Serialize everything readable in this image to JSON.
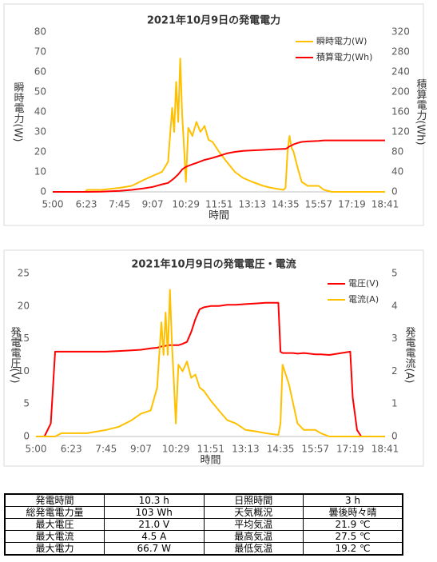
{
  "chart_data": [
    {
      "type": "line",
      "title": "2021年10月9日の発電電力",
      "x_label": "時間",
      "y_label": "瞬時電力(W)",
      "y2_label": "積算電力(Wh)",
      "x": [
        "5:00",
        "6:00",
        "6:20",
        "6:25",
        "7:00",
        "7:45",
        "8:15",
        "8:45",
        "9:07",
        "9:30",
        "9:45",
        "9:55",
        "10:00",
        "10:05",
        "10:10",
        "10:15",
        "10:20",
        "10:25",
        "10:29",
        "10:35",
        "10:45",
        "10:55",
        "11:05",
        "11:15",
        "11:25",
        "11:35",
        "11:51",
        "12:10",
        "12:30",
        "12:50",
        "13:13",
        "13:40",
        "14:00",
        "14:30",
        "14:35",
        "14:40",
        "14:45",
        "14:50",
        "14:55",
        "15:05",
        "15:15",
        "15:30",
        "15:57",
        "16:10",
        "16:30",
        "17:19",
        "18:41"
      ],
      "series": [
        {
          "name": "瞬時電力(W)",
          "color": "#ffc000",
          "values": [
            0,
            0,
            0,
            1,
            1,
            2,
            3,
            6,
            8,
            10,
            15,
            42,
            30,
            55,
            35,
            66.7,
            38,
            20,
            5,
            32,
            28,
            35,
            30,
            33,
            26,
            25,
            20,
            15,
            10,
            7,
            5,
            3,
            2,
            1,
            2,
            20,
            28,
            22,
            20,
            12,
            5,
            3,
            3,
            1,
            0,
            0,
            0
          ]
        },
        {
          "name": "積算電力(Wh)",
          "color": "#ff0000",
          "axis": "y2",
          "values": [
            0,
            0,
            0,
            0,
            0.5,
            2,
            4,
            7,
            10,
            15,
            18,
            24,
            27,
            31,
            35,
            40,
            45,
            48,
            50,
            52,
            55,
            58,
            61,
            64,
            66,
            68,
            72,
            77,
            80,
            82,
            83,
            84,
            85,
            86,
            86,
            88,
            91,
            93,
            95,
            98,
            100,
            101,
            102,
            103,
            103,
            103,
            103
          ]
        }
      ],
      "xlim": [
        "5:00",
        "18:41"
      ],
      "xticks": [
        "5:00",
        "6:23",
        "7:45",
        "9:07",
        "10:29",
        "11:51",
        "13:13",
        "14:35",
        "15:57",
        "17:19",
        "18:41"
      ],
      "ylim": [
        0,
        80
      ],
      "yticks": [
        0,
        10,
        20,
        30,
        40,
        50,
        60,
        70,
        80
      ],
      "y2lim": [
        0,
        320
      ],
      "y2ticks": [
        0,
        40,
        80,
        120,
        160,
        200,
        240,
        280,
        320
      ],
      "grid": false,
      "legend": "upper-right"
    },
    {
      "type": "line",
      "title": "2021年10月9日の発電電圧・電流",
      "x_label": "時間",
      "y_label": "発電電圧(V)",
      "y2_label": "発電電流(A)",
      "x": [
        "5:00",
        "5:20",
        "5:35",
        "5:45",
        "6:00",
        "7:00",
        "7:45",
        "8:15",
        "8:45",
        "9:07",
        "9:30",
        "9:45",
        "9:55",
        "10:00",
        "10:05",
        "10:10",
        "10:15",
        "10:20",
        "10:25",
        "10:29",
        "10:35",
        "10:45",
        "10:55",
        "11:05",
        "11:15",
        "11:25",
        "11:35",
        "11:51",
        "12:10",
        "12:30",
        "12:50",
        "13:13",
        "13:40",
        "14:00",
        "14:30",
        "14:35",
        "14:40",
        "14:45",
        "14:55",
        "15:05",
        "15:15",
        "15:30",
        "15:57",
        "16:10",
        "16:30",
        "17:19",
        "17:25",
        "17:35",
        "17:45",
        "18:41"
      ],
      "series": [
        {
          "name": "電圧(V)",
          "color": "#ff0000",
          "values": [
            0,
            0,
            2,
            13,
            13,
            13,
            13,
            13.1,
            13.2,
            13.3,
            13.5,
            13.6,
            13.8,
            13.8,
            13.9,
            14,
            14,
            14,
            14,
            14,
            14,
            14.2,
            14.5,
            16,
            18,
            19.5,
            19.8,
            20,
            20,
            20.2,
            20.2,
            20.3,
            20.4,
            20.5,
            20.5,
            13,
            12.8,
            12.8,
            12.8,
            12.8,
            12.7,
            12.8,
            12.6,
            12.6,
            12.5,
            13,
            6,
            1,
            0,
            0
          ]
        },
        {
          "name": "電流(A)",
          "color": "#ffc000",
          "axis": "y2",
          "values": [
            0,
            0,
            0,
            0,
            0.1,
            0.1,
            0.2,
            0.3,
            0.5,
            0.7,
            0.8,
            1.5,
            3.5,
            2.5,
            3.8,
            2.5,
            4.5,
            2.8,
            1.5,
            0.4,
            2.2,
            2,
            2.3,
            1.8,
            1.9,
            1.5,
            1.4,
            1.1,
            0.8,
            0.5,
            0.4,
            0.2,
            0.15,
            0.1,
            0.05,
            0.4,
            2.2,
            2,
            1.6,
            1,
            0.4,
            0.2,
            0.2,
            0.1,
            0,
            0,
            0,
            0,
            0,
            0
          ]
        }
      ],
      "xlim": [
        "5:00",
        "18:41"
      ],
      "xticks": [
        "5:00",
        "6:23",
        "7:45",
        "9:07",
        "10:29",
        "11:51",
        "13:13",
        "14:35",
        "15:57",
        "17:19",
        "18:41"
      ],
      "ylim": [
        0,
        25
      ],
      "yticks": [
        0,
        5,
        10,
        15,
        20,
        25
      ],
      "y2lim": [
        0,
        5
      ],
      "y2ticks": [
        0,
        1,
        2,
        3,
        4,
        5
      ],
      "grid": false,
      "legend": "upper-right"
    }
  ],
  "table": {
    "rows": [
      [
        "発電時間",
        "10.3 h",
        "日照時間",
        "3 h"
      ],
      [
        "総発電電力量",
        "103 Wh",
        "天気概況",
        "曇後時々晴"
      ],
      [
        "最大電圧",
        "21.0 V",
        "平均気温",
        "21.9 ℃"
      ],
      [
        "最大電流",
        "4.5 A",
        "最高気温",
        "27.5 ℃"
      ],
      [
        "最大電力",
        "66.7 W",
        "最低気温",
        "19.2 ℃"
      ]
    ]
  }
}
